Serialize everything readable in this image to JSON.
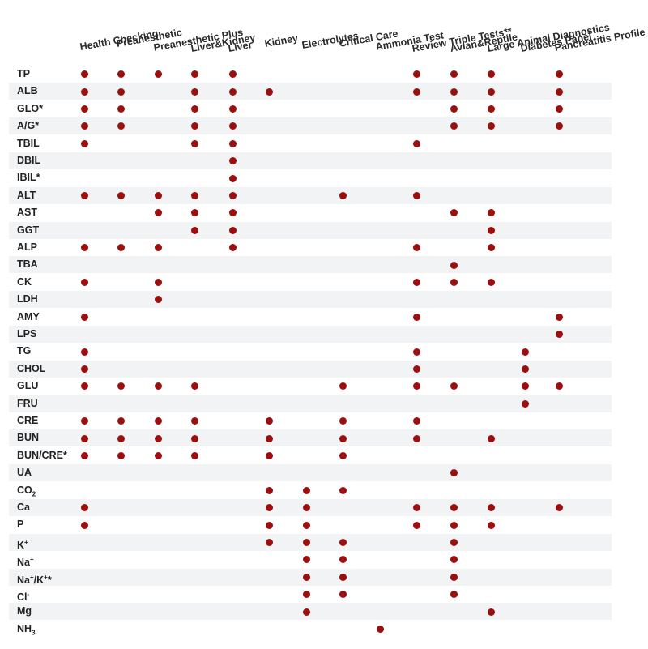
{
  "colors": {
    "dot": "#9b0f0f",
    "stripe": "#f1f3f4"
  },
  "panels": [
    "Health Checking",
    "Preanesthetic",
    "Preanesthetic Plus",
    "Liver&Kidney",
    "Liver",
    "Kidney",
    "Electrolytes",
    "Critical Care",
    "Ammonia Test",
    "Review Triple Tests**",
    "Avian&Reptile",
    "Large Animal Diagnostics",
    "Diabetes Panel",
    "Pancreatitis Profile"
  ],
  "rows": [
    {
      "name": "TP",
      "panels": [
        0,
        1,
        2,
        3,
        4,
        9,
        10,
        11,
        13
      ]
    },
    {
      "name": "ALB",
      "panels": [
        0,
        1,
        3,
        4,
        5,
        9,
        10,
        11,
        13
      ]
    },
    {
      "name": "GLO*",
      "panels": [
        0,
        1,
        3,
        4,
        10,
        11,
        13
      ]
    },
    {
      "name": "A/G*",
      "panels": [
        0,
        1,
        3,
        4,
        10,
        11,
        13
      ]
    },
    {
      "name": "TBIL",
      "panels": [
        0,
        3,
        4,
        9
      ]
    },
    {
      "name": "DBIL",
      "panels": [
        4
      ]
    },
    {
      "name": "IBIL*",
      "panels": [
        4
      ]
    },
    {
      "name": "ALT",
      "panels": [
        0,
        1,
        2,
        3,
        4,
        7,
        9
      ]
    },
    {
      "name": "AST",
      "panels": [
        2,
        3,
        4,
        10,
        11
      ]
    },
    {
      "name": "GGT",
      "panels": [
        3,
        4,
        11
      ]
    },
    {
      "name": "ALP",
      "panels": [
        0,
        1,
        2,
        4,
        9,
        11
      ]
    },
    {
      "name": "TBA",
      "panels": [
        10
      ]
    },
    {
      "name": "CK",
      "panels": [
        0,
        2,
        9,
        10,
        11
      ]
    },
    {
      "name": "LDH",
      "panels": [
        2
      ]
    },
    {
      "name": "AMY",
      "panels": [
        0,
        9,
        13
      ]
    },
    {
      "name": "LPS",
      "panels": [
        13
      ]
    },
    {
      "name": "TG",
      "panels": [
        0,
        9,
        12
      ]
    },
    {
      "name": "CHOL",
      "panels": [
        0,
        9,
        12
      ]
    },
    {
      "name": "GLU",
      "panels": [
        0,
        1,
        2,
        3,
        7,
        9,
        10,
        12,
        13
      ]
    },
    {
      "name": "FRU",
      "panels": [
        12
      ]
    },
    {
      "name": "CRE",
      "panels": [
        0,
        1,
        2,
        3,
        5,
        7,
        9
      ]
    },
    {
      "name": "BUN",
      "panels": [
        0,
        1,
        2,
        3,
        5,
        7,
        9,
        11
      ]
    },
    {
      "name": "BUN/CRE*",
      "panels": [
        0,
        1,
        2,
        3,
        5,
        7
      ]
    },
    {
      "name": "UA",
      "panels": [
        10
      ]
    },
    {
      "name": "CO2",
      "panels": [
        5,
        6,
        7
      ]
    },
    {
      "name": "Ca",
      "panels": [
        0,
        5,
        6,
        9,
        10,
        11,
        13
      ]
    },
    {
      "name": "P",
      "panels": [
        0,
        5,
        6,
        9,
        10,
        11
      ]
    },
    {
      "name": "K+",
      "panels": [
        5,
        6,
        7,
        10
      ]
    },
    {
      "name": "Na+",
      "panels": [
        6,
        7,
        10
      ]
    },
    {
      "name": "Na+/K+*",
      "panels": [
        6,
        7,
        10
      ]
    },
    {
      "name": "Cl-",
      "panels": [
        6,
        7,
        10
      ]
    },
    {
      "name": "Mg",
      "panels": [
        6,
        11
      ]
    },
    {
      "name": "NH3",
      "panels": [
        8
      ]
    }
  ]
}
